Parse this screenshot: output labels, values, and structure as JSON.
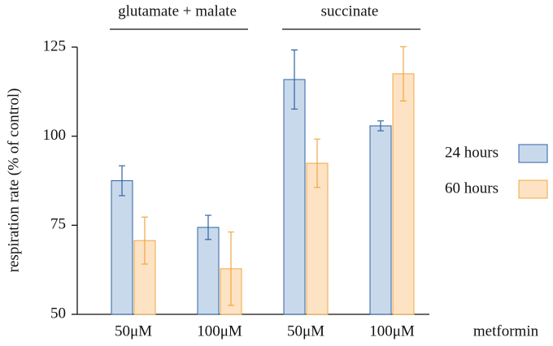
{
  "chart_data": {
    "type": "bar",
    "y_label": "respiration rate (% of control)",
    "x_label": "metformin",
    "groups": [
      {
        "name": "glutamate + malate",
        "categories": [
          "50μM",
          "100μM"
        ]
      },
      {
        "name": "succinate",
        "categories": [
          "50μM",
          "100μM"
        ]
      }
    ],
    "series": [
      {
        "name": "24 hours",
        "color": "#c9d9ec",
        "edge_color": "#2d62a3",
        "values": [
          87.5,
          74.4,
          115.9,
          102.9
        ],
        "errors": [
          4.2,
          3.4,
          8.3,
          1.4
        ]
      },
      {
        "name": "60 hours",
        "color": "#fde3c3",
        "edge_color": "#f0a746",
        "values": [
          70.7,
          62.8,
          92.4,
          117.5
        ],
        "errors": [
          6.6,
          10.3,
          6.8,
          7.6
        ]
      }
    ],
    "ylim": [
      50,
      125
    ],
    "yticks": [
      50,
      75,
      100,
      125
    ]
  }
}
